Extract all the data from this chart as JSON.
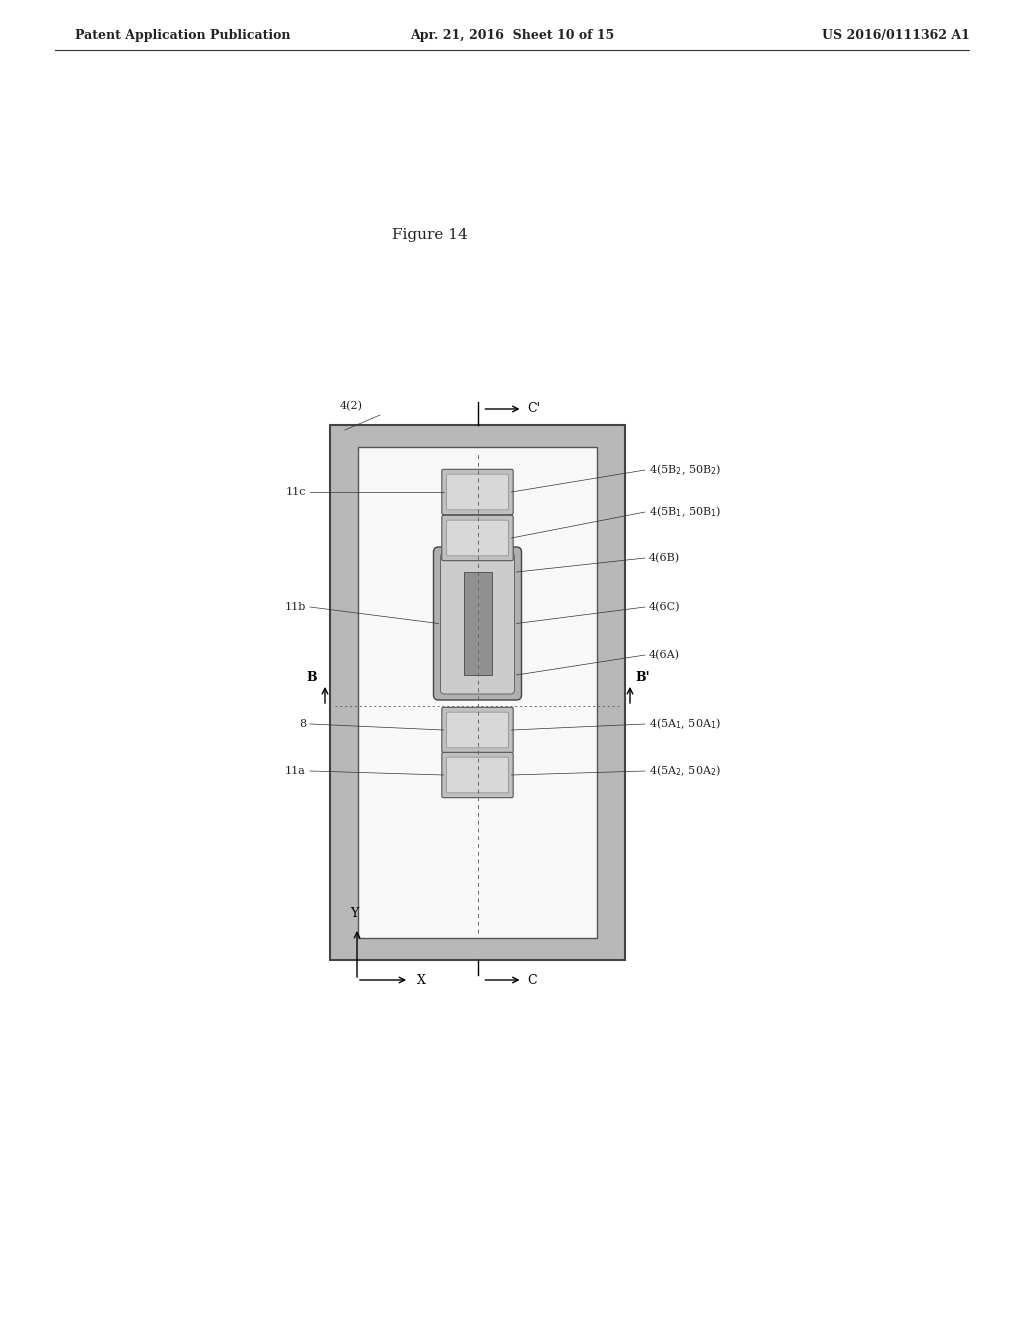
{
  "title": "Figure 14",
  "header_left": "Patent Application Publication",
  "header_mid": "Apr. 21, 2016  Sheet 10 of 15",
  "header_right": "US 2016/0111362 A1",
  "bg_color": "#ffffff",
  "gray_outer": "#b8b8b8",
  "gray_inner_border": "#888888",
  "white_inner": "#f8f8f8",
  "cell_gray": "#c0c0c0",
  "cell_dark": "#909090",
  "gate_gray": "#a8a8a8"
}
